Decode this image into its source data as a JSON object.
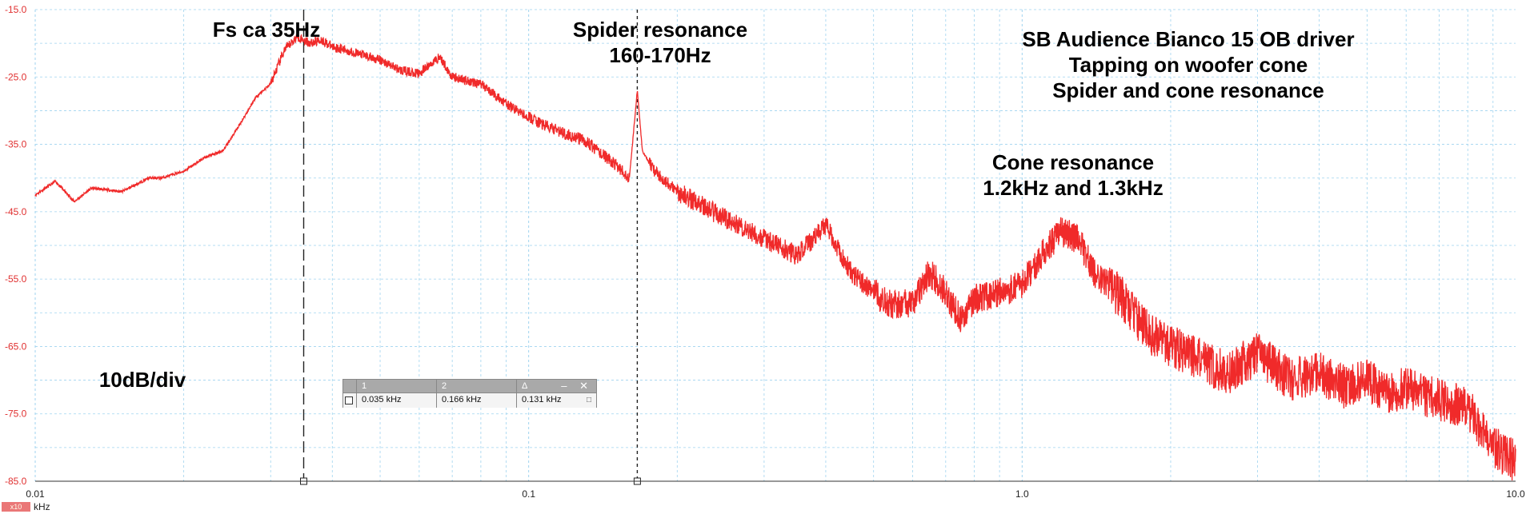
{
  "chart_data": {
    "type": "line",
    "title": "",
    "xlabel": "kHz",
    "ylabel": "",
    "xscale": "log",
    "xlim": [
      0.01,
      10.0
    ],
    "ylim": [
      -85,
      -15
    ],
    "grid": true,
    "line_color": "#f02a2a",
    "y_ticks": [
      "-15.0",
      "-25.0",
      "-35.0",
      "-45.0",
      "-55.0",
      "-65.0",
      "-75.0",
      "-85.0"
    ],
    "x_ticks": [
      "0.01",
      "0.1",
      "1.0",
      "10.0"
    ],
    "series": [
      {
        "x": [
          0.01,
          0.011,
          0.012,
          0.013,
          0.015,
          0.017,
          0.018,
          0.02,
          0.022,
          0.024,
          0.026,
          0.028,
          0.03,
          0.032,
          0.034,
          0.035,
          0.036,
          0.038,
          0.04,
          0.045,
          0.05,
          0.055,
          0.06,
          0.066,
          0.07,
          0.08,
          0.09,
          0.1,
          0.11,
          0.13,
          0.15,
          0.16,
          0.166,
          0.17,
          0.18,
          0.2,
          0.25,
          0.3,
          0.35,
          0.4,
          0.45,
          0.5,
          0.55,
          0.6,
          0.65,
          0.7,
          0.75,
          0.8,
          0.9,
          1.0,
          1.1,
          1.2,
          1.3,
          1.4,
          1.6,
          1.8,
          2.0,
          2.3,
          2.6,
          3.0,
          3.5,
          4.0,
          4.5,
          5.0,
          5.5,
          6.0,
          7.0,
          8.0,
          9.0,
          10.0
        ],
        "y": [
          -42.5,
          -40.5,
          -43.5,
          -41.5,
          -42,
          -40,
          -40,
          -39,
          -37,
          -36,
          -32,
          -28,
          -26,
          -21,
          -19,
          -19.5,
          -20,
          -19.5,
          -20.5,
          -21.5,
          -22.5,
          -24,
          -24.5,
          -22,
          -25,
          -26,
          -29,
          -31,
          -32.5,
          -34.5,
          -38,
          -40,
          -27,
          -36,
          -39,
          -42,
          -46,
          -49,
          -51.5,
          -47,
          -54,
          -57,
          -59,
          -58.5,
          -54,
          -57,
          -61,
          -58,
          -57,
          -56,
          -51,
          -48,
          -49,
          -54,
          -58,
          -63,
          -65,
          -67,
          -69,
          -66,
          -70,
          -69,
          -71,
          -70,
          -72,
          -71,
          -73,
          -74,
          -80,
          -82
        ]
      }
    ],
    "annotations": [
      "Fs ca 35Hz",
      "Spider resonance",
      "160-170Hz",
      "SB Audience Bianco 15 OB driver",
      "Tapping on woofer cone",
      "Spider and cone resonance",
      "Cone resonance",
      "1.2kHz and 1.3kHz",
      "10dB/div"
    ],
    "cursors": {
      "c1": 0.035,
      "c2": 0.166
    }
  },
  "cursor_table": {
    "head": [
      "1",
      "2",
      "Δ"
    ],
    "values": [
      "0.035 kHz",
      "0.166 kHz",
      "0.131 kHz"
    ],
    "buttons": "– ✕"
  },
  "units_badge": "x10",
  "units_label": "kHz"
}
